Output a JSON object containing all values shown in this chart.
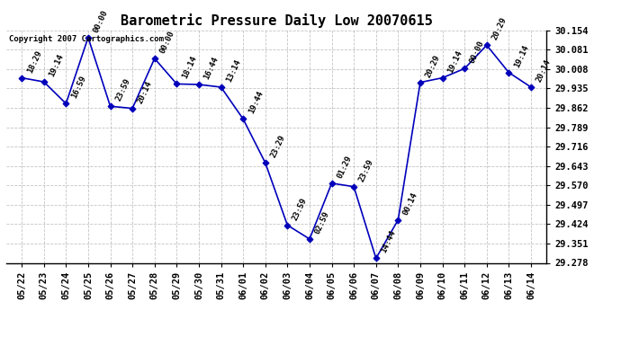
{
  "title": "Barometric Pressure Daily Low 20070615",
  "copyright": "Copyright 2007 Cartographics.com",
  "x_labels": [
    "05/22",
    "05/23",
    "05/24",
    "05/25",
    "05/26",
    "05/27",
    "05/28",
    "05/29",
    "05/30",
    "05/31",
    "06/01",
    "06/02",
    "06/03",
    "06/04",
    "06/05",
    "06/06",
    "06/07",
    "06/08",
    "06/09",
    "06/10",
    "06/11",
    "06/12",
    "06/13",
    "06/14"
  ],
  "y_values": [
    29.975,
    29.96,
    29.878,
    30.127,
    29.868,
    29.86,
    30.048,
    29.952,
    29.95,
    29.94,
    29.82,
    29.655,
    29.42,
    29.368,
    29.578,
    29.565,
    29.295,
    29.44,
    29.958,
    29.975,
    30.01,
    30.098,
    29.995,
    29.94
  ],
  "time_labels": [
    "18:29",
    "19:14",
    "16:59",
    "00:00",
    "23:59",
    "20:14",
    "00:00",
    "18:14",
    "16:44",
    "13:14",
    "19:44",
    "23:29",
    "23:59",
    "02:59",
    "01:29",
    "23:59",
    "14:44",
    "00:14",
    "20:29",
    "19:14",
    "00:00",
    "20:29",
    "19:14",
    "20:14"
  ],
  "ylim": [
    29.278,
    30.154
  ],
  "yticks": [
    29.278,
    29.351,
    29.424,
    29.497,
    29.57,
    29.643,
    29.716,
    29.789,
    29.862,
    29.935,
    30.008,
    30.081,
    30.154
  ],
  "line_color": "#0000BB",
  "marker_color": "#0000BB",
  "bg_color": "#FFFFFF",
  "grid_color": "#AAAAAA",
  "title_fontsize": 11,
  "tick_fontsize": 7.5,
  "annotation_fontsize": 6.5
}
